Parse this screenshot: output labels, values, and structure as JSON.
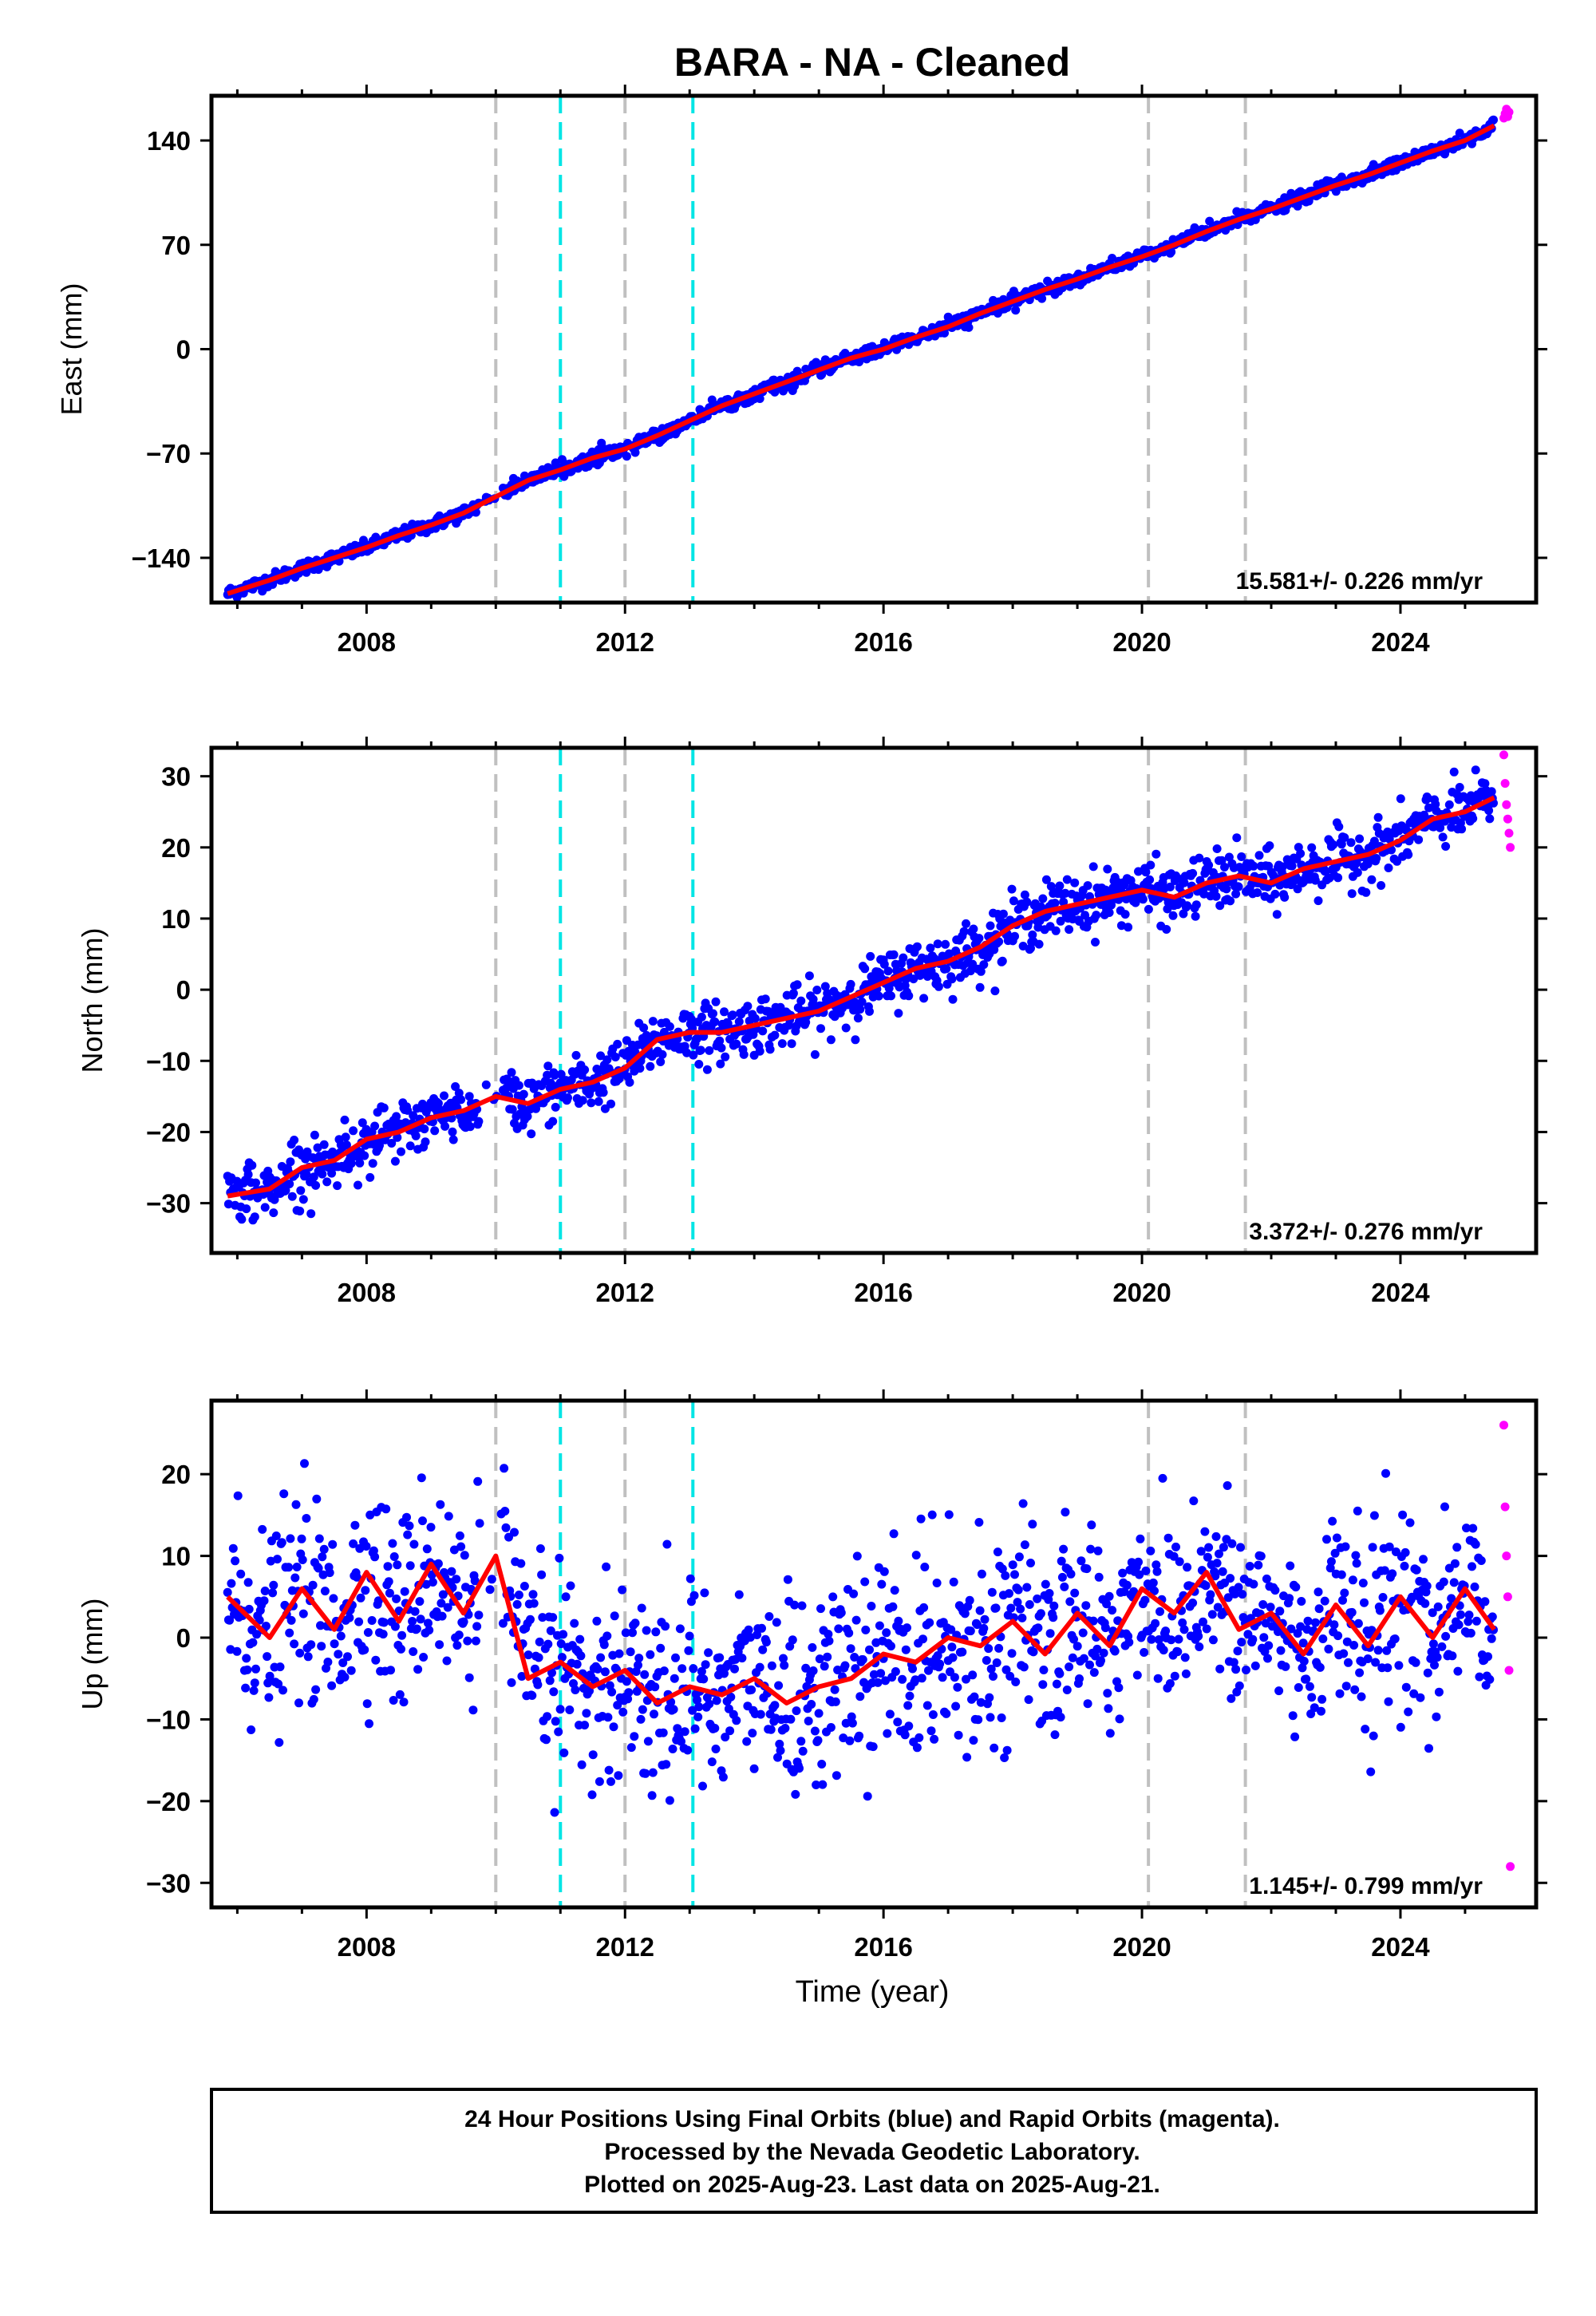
{
  "title": "BARA  - NA - Cleaned",
  "x_axis_label": "Time (year)",
  "footer": {
    "line1": "24 Hour Positions Using Final Orbits (blue) and Rapid Orbits (magenta).",
    "line2": "Processed by the Nevada Geodetic Laboratory.",
    "line3": "Plotted on 2025-Aug-23. Last data on 2025-Aug-21."
  },
  "colors": {
    "final_orbits": "#0000ff",
    "rapid_orbits": "#ff00ff",
    "model_fit": "#ff0000",
    "event_gray": "#c0c0c0",
    "event_cyan": "#00e5e5"
  },
  "event_lines": [
    {
      "year": 2010.0,
      "color": "gray"
    },
    {
      "year": 2011.0,
      "color": "cyan"
    },
    {
      "year": 2012.0,
      "color": "gray"
    },
    {
      "year": 2013.05,
      "color": "cyan"
    },
    {
      "year": 2020.1,
      "color": "gray"
    },
    {
      "year": 2021.6,
      "color": "gray"
    }
  ],
  "chart_data": [
    {
      "type": "scatter",
      "component": "east",
      "ylabel": "East (mm)",
      "xlim": [
        2005.6,
        2026.1
      ],
      "ylim": [
        -170,
        170
      ],
      "xticks": [
        2008,
        2012,
        2016,
        2020,
        2024
      ],
      "yticks": [
        -140,
        -70,
        0,
        70,
        140
      ],
      "rate_label": "15.581+/- 0.226 mm/yr",
      "series": [
        {
          "name": "Final Orbits",
          "color": "#0000ff",
          "x": [
            2005.85,
            2006.5,
            2007.0,
            2007.5,
            2008.0,
            2008.5,
            2009.0,
            2009.5,
            2010.0,
            2010.5,
            2011.0,
            2011.5,
            2012.0,
            2012.5,
            2013.0,
            2013.5,
            2014.0,
            2014.5,
            2015.0,
            2015.5,
            2016.0,
            2016.5,
            2017.0,
            2017.5,
            2018.0,
            2018.5,
            2019.0,
            2019.5,
            2020.0,
            2020.5,
            2021.0,
            2021.5,
            2022.0,
            2022.5,
            2023.0,
            2023.5,
            2024.0,
            2024.5,
            2025.0,
            2025.45
          ],
          "y": [
            -164,
            -155,
            -147,
            -140,
            -133,
            -125,
            -118,
            -110,
            -99,
            -88,
            -81,
            -73,
            -67,
            -58,
            -48,
            -38,
            -30,
            -22,
            -14,
            -6,
            0,
            8,
            15,
            24,
            32,
            40,
            47,
            55,
            62,
            70,
            79,
            87,
            94,
            102,
            110,
            117,
            125,
            133,
            140,
            150
          ]
        },
        {
          "name": "Rapid Orbits",
          "color": "#ff00ff",
          "x": [
            2025.6,
            2025.62,
            2025.64,
            2025.66,
            2025.68
          ],
          "y": [
            155,
            158,
            161,
            156,
            159
          ]
        }
      ]
    },
    {
      "type": "scatter",
      "component": "north",
      "ylabel": "North (mm)",
      "xlim": [
        2005.6,
        2026.1
      ],
      "ylim": [
        -37,
        34
      ],
      "xticks": [
        2008,
        2012,
        2016,
        2020,
        2024
      ],
      "yticks": [
        -30,
        -20,
        -10,
        0,
        10,
        20,
        30
      ],
      "rate_label": "3.372+/- 0.276 mm/yr",
      "series": [
        {
          "name": "Final Orbits",
          "color": "#0000ff",
          "x": [
            2005.85,
            2006.5,
            2007.0,
            2007.5,
            2008.0,
            2008.5,
            2009.0,
            2009.5,
            2010.0,
            2010.5,
            2011.0,
            2011.5,
            2012.0,
            2012.5,
            2013.0,
            2013.5,
            2014.0,
            2014.5,
            2015.0,
            2015.5,
            2016.0,
            2016.5,
            2017.0,
            2017.5,
            2018.0,
            2018.5,
            2019.0,
            2019.5,
            2020.0,
            2020.5,
            2021.0,
            2021.5,
            2022.0,
            2022.5,
            2023.0,
            2023.5,
            2024.0,
            2024.5,
            2025.0,
            2025.45
          ],
          "y": [
            -29,
            -28,
            -25,
            -24,
            -21,
            -20,
            -18,
            -17,
            -15,
            -16,
            -14,
            -13,
            -11,
            -7,
            -6,
            -6,
            -5,
            -4,
            -3,
            -1,
            1,
            3,
            4,
            6,
            9,
            11,
            12,
            13,
            14,
            13,
            15,
            16,
            15,
            17,
            18,
            19,
            21,
            24,
            25,
            27
          ]
        },
        {
          "name": "Rapid Orbits",
          "color": "#ff00ff",
          "x": [
            2025.6,
            2025.62,
            2025.64,
            2025.66,
            2025.68,
            2025.7
          ],
          "y": [
            33,
            29,
            26,
            24,
            22,
            20
          ]
        }
      ]
    },
    {
      "type": "scatter",
      "component": "up",
      "ylabel": "Up (mm)",
      "xlim": [
        2005.6,
        2026.1
      ],
      "ylim": [
        -33,
        29
      ],
      "xticks": [
        2008,
        2012,
        2016,
        2020,
        2024
      ],
      "yticks": [
        -30,
        -20,
        -10,
        0,
        10,
        20
      ],
      "rate_label": "1.145+/- 0.799 mm/yr",
      "series": [
        {
          "name": "Final Orbits",
          "color": "#0000ff",
          "x": [
            2005.85,
            2006.5,
            2007.0,
            2007.5,
            2008.0,
            2008.5,
            2009.0,
            2009.5,
            2010.0,
            2010.5,
            2011.0,
            2011.5,
            2012.0,
            2012.5,
            2013.0,
            2013.5,
            2014.0,
            2014.5,
            2015.0,
            2015.5,
            2016.0,
            2016.5,
            2017.0,
            2017.5,
            2018.0,
            2018.5,
            2019.0,
            2019.5,
            2020.0,
            2020.5,
            2021.0,
            2021.5,
            2022.0,
            2022.5,
            2023.0,
            2023.5,
            2024.0,
            2024.5,
            2025.0,
            2025.45
          ],
          "y": [
            5,
            0,
            6,
            1,
            8,
            2,
            9,
            3,
            10,
            -5,
            -3,
            -6,
            -4,
            -8,
            -6,
            -7,
            -5,
            -8,
            -6,
            -5,
            -2,
            -3,
            0,
            -1,
            2,
            -2,
            3,
            -1,
            6,
            3,
            8,
            1,
            3,
            -2,
            4,
            -1,
            5,
            0,
            6,
            1
          ]
        },
        {
          "name": "Rapid Orbits",
          "color": "#ff00ff",
          "x": [
            2025.6,
            2025.62,
            2025.64,
            2025.66,
            2025.68,
            2025.7
          ],
          "y": [
            26,
            16,
            10,
            5,
            -4,
            -28
          ]
        }
      ]
    }
  ]
}
